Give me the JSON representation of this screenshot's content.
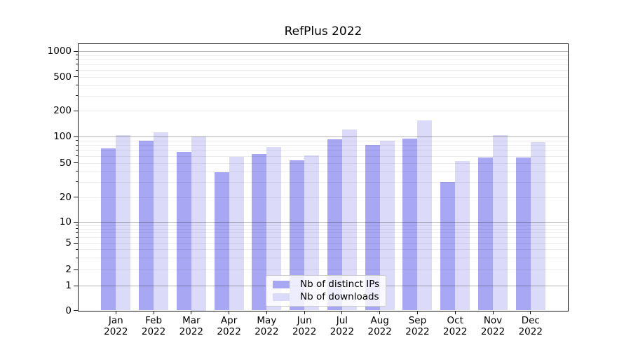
{
  "chart_data": {
    "type": "bar",
    "title": "RefPlus 2022",
    "categories": [
      "Jan",
      "Feb",
      "Mar",
      "Apr",
      "May",
      "Jun",
      "Jul",
      "Aug",
      "Sep",
      "Oct",
      "Nov",
      "Dec"
    ],
    "category_year": "2022",
    "series": [
      {
        "name": "Nb of distinct IPs",
        "color": "#a7a7f3",
        "values": [
          73,
          89,
          66,
          39,
          63,
          53,
          93,
          80,
          94,
          30,
          57,
          57
        ]
      },
      {
        "name": "Nb of downloads",
        "color": "#dbdbf9",
        "values": [
          103,
          112,
          100,
          59,
          76,
          61,
          121,
          89,
          155,
          52,
          103,
          87
        ]
      }
    ],
    "xlabel": "",
    "ylabel": "",
    "yscale": "symlog",
    "ylim": [
      0,
      1200
    ],
    "y_tick_values": [
      0,
      1,
      2,
      5,
      10,
      20,
      50,
      100,
      200,
      500,
      1000
    ],
    "y_tick_labels": [
      "0",
      "1",
      "2",
      "5",
      "10",
      "20",
      "50",
      "100",
      "200",
      "500",
      "1000"
    ],
    "y_major_gridlines": [
      1,
      10,
      100,
      1000
    ],
    "y_minor_gridlines": [
      2,
      3,
      4,
      5,
      6,
      7,
      8,
      9,
      20,
      30,
      40,
      50,
      60,
      70,
      80,
      90,
      200,
      300,
      400,
      500,
      600,
      700,
      800,
      900
    ],
    "y_minor_tick_values": [
      3,
      4,
      6,
      7,
      8,
      9,
      30,
      40,
      60,
      70,
      80,
      90,
      300,
      400,
      600,
      700,
      800,
      900
    ],
    "grid": true,
    "legend_position": "lower center"
  },
  "colors": {
    "background": "#ffffff",
    "axis": "#1a1a1a",
    "text": "#000000",
    "major_grid": "#b3b3b3",
    "minor_grid": "#ececec",
    "legend_border": "#cccccc"
  }
}
